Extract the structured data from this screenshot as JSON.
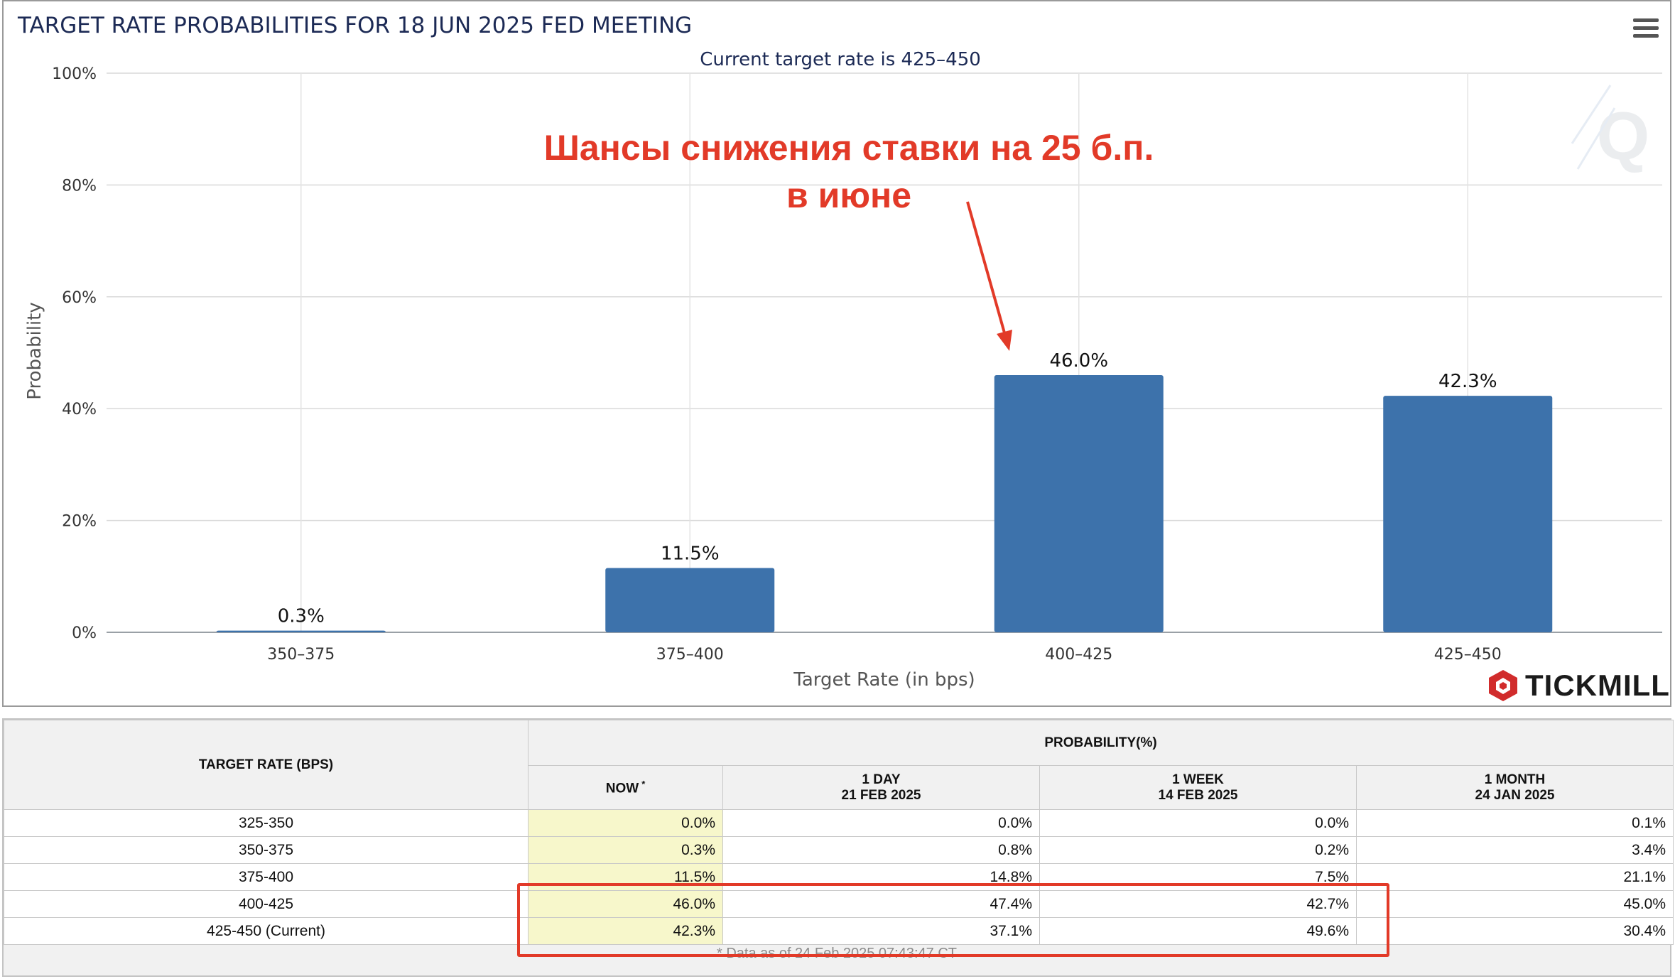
{
  "chart_data": {
    "type": "bar",
    "title": "TARGET RATE PROBABILITIES FOR 18 JUN 2025 FED MEETING",
    "subtitle": "Current target rate is 425–450",
    "xlabel": "Target Rate (in bps)",
    "ylabel": "Probability",
    "categories": [
      "350–375",
      "375–400",
      "400–425",
      "425–450"
    ],
    "values": [
      0.3,
      11.5,
      46.0,
      42.3
    ],
    "value_labels": [
      "0.3%",
      "11.5%",
      "46.0%",
      "42.3%"
    ],
    "ylim": [
      0,
      100
    ],
    "yticks": [
      0,
      20,
      40,
      60,
      80,
      100
    ],
    "ytick_labels": [
      "0%",
      "20%",
      "40%",
      "60%",
      "80%",
      "100%"
    ],
    "grid": true,
    "bar_color": "#3d72ab",
    "annotation": {
      "line1": "Шансы снижения ставки на 25 б.п.",
      "line2": "в июне",
      "color": "#e23a28",
      "points_to": "400–425"
    }
  },
  "brand": {
    "name": "TICKMILL"
  },
  "table": {
    "rate_header": "TARGET RATE (BPS)",
    "prob_header": "PROBABILITY(%)",
    "columns": [
      {
        "line1": "NOW",
        "line2": "",
        "sup": "*"
      },
      {
        "line1": "1 DAY",
        "line2": "21 FEB 2025",
        "sup": ""
      },
      {
        "line1": "1 WEEK",
        "line2": "14 FEB 2025",
        "sup": ""
      },
      {
        "line1": "1 MONTH",
        "line2": "24 JAN 2025",
        "sup": ""
      }
    ],
    "rows": [
      {
        "rate": "325-350",
        "values": [
          "0.0%",
          "0.0%",
          "0.0%",
          "0.1%"
        ]
      },
      {
        "rate": "350-375",
        "values": [
          "0.3%",
          "0.8%",
          "0.2%",
          "3.4%"
        ]
      },
      {
        "rate": "375-400",
        "values": [
          "11.5%",
          "14.8%",
          "7.5%",
          "21.1%"
        ]
      },
      {
        "rate": "400-425",
        "values": [
          "46.0%",
          "47.4%",
          "42.7%",
          "45.0%"
        ]
      },
      {
        "rate": "425-450 (Current)",
        "values": [
          "42.3%",
          "37.1%",
          "49.6%",
          "30.4%"
        ]
      }
    ],
    "footnote": "* Data as of 24 Feb 2025 07:43:47 CT"
  }
}
